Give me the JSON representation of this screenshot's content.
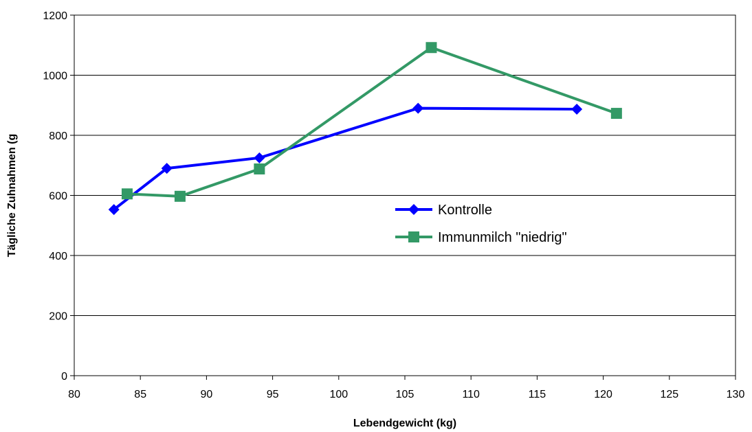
{
  "chart_data": {
    "type": "scatter",
    "title": "",
    "xlabel": "Lebendgewicht (kg)",
    "ylabel": "Tägliche Zuhnahmen (g",
    "xlim": [
      80,
      130
    ],
    "ylim": [
      0,
      1200
    ],
    "xticks": [
      80,
      85,
      90,
      95,
      100,
      105,
      110,
      115,
      120,
      125,
      130
    ],
    "yticks": [
      0,
      200,
      400,
      600,
      800,
      1000,
      1200
    ],
    "grid": "horizontal",
    "legend": "right-center",
    "series": [
      {
        "name": "Kontrolle",
        "color": "#0000ff",
        "marker": "diamond",
        "x": [
          83,
          87,
          94,
          106,
          118
        ],
        "y": [
          553,
          690,
          725,
          890,
          887
        ]
      },
      {
        "name": "Immunmilch \"niedrig\"",
        "color": "#339966",
        "marker": "square",
        "x": [
          84,
          88,
          94,
          107,
          121
        ],
        "y": [
          605,
          597,
          688,
          1092,
          873
        ]
      }
    ]
  }
}
